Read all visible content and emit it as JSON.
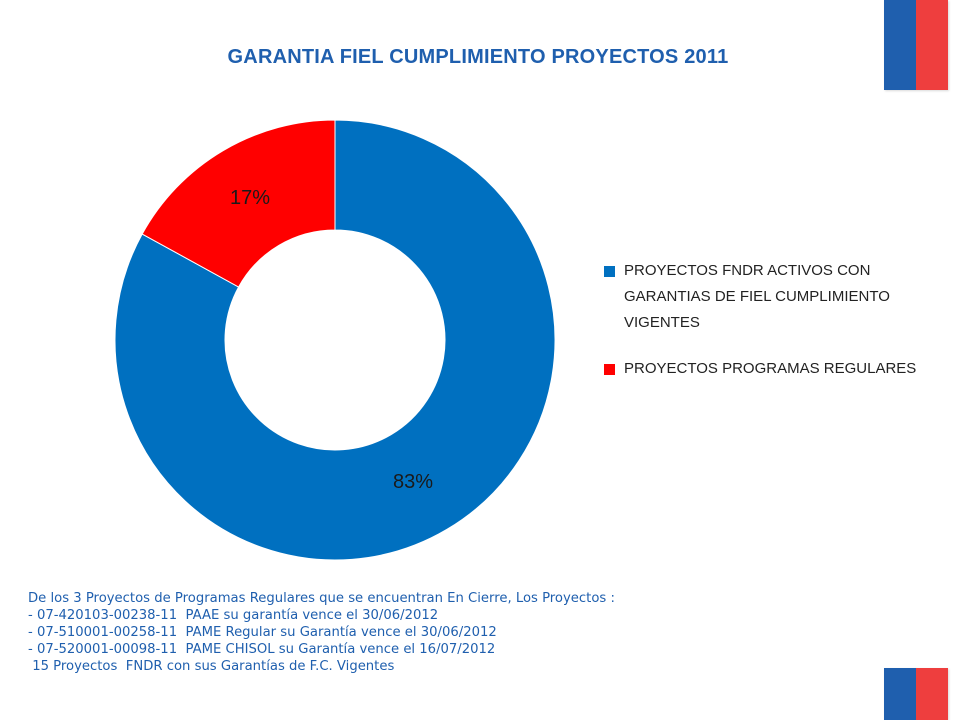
{
  "title": "GARANTIA FIEL CUMPLIMIENTO PROYECTOS 2011",
  "colors": {
    "accent": "#1f5fae",
    "blue_slice": "#0070c0",
    "red_slice": "#ff0000",
    "flag_blue": "#1f5fae",
    "flag_red": "#ee3e3e"
  },
  "chart_data": {
    "type": "pie",
    "title": "GARANTIA FIEL CUMPLIMIENTO PROYECTOS 2011",
    "categories": [
      "PROYECTOS FNDR ACTIVOS CON GARANTIAS DE FIEL CUMPLIMIENTO VIGENTES",
      "PROYECTOS PROGRAMAS REGULARES"
    ],
    "values": [
      83,
      17
    ],
    "data_labels": [
      "83%",
      "17%"
    ],
    "colors": [
      "#0070c0",
      "#ff0000"
    ],
    "legend_position": "right",
    "donut": true
  },
  "legend": {
    "items": [
      {
        "label": "PROYECTOS FNDR ACTIVOS CON GARANTIAS DE FIEL CUMPLIMIENTO VIGENTES",
        "color": "#0070c0"
      },
      {
        "label": "PROYECTOS PROGRAMAS REGULARES",
        "color": "#ff0000"
      }
    ]
  },
  "notes": [
    "De los 3 Proyectos de Programas Regulares que se encuentran En Cierre, Los Proyectos :",
    "- 07-420103-00238-11  PAAE su garantía vence el 30/06/2012",
    "- 07-510001-00258-11  PAME Regular su Garantía vence el 30/06/2012",
    "- 07-520001-00098-11  PAME CHISOL su Garantía vence el 16/07/2012",
    " 15 Proyectos  FNDR con sus Garantías de F.C. Vigentes"
  ]
}
